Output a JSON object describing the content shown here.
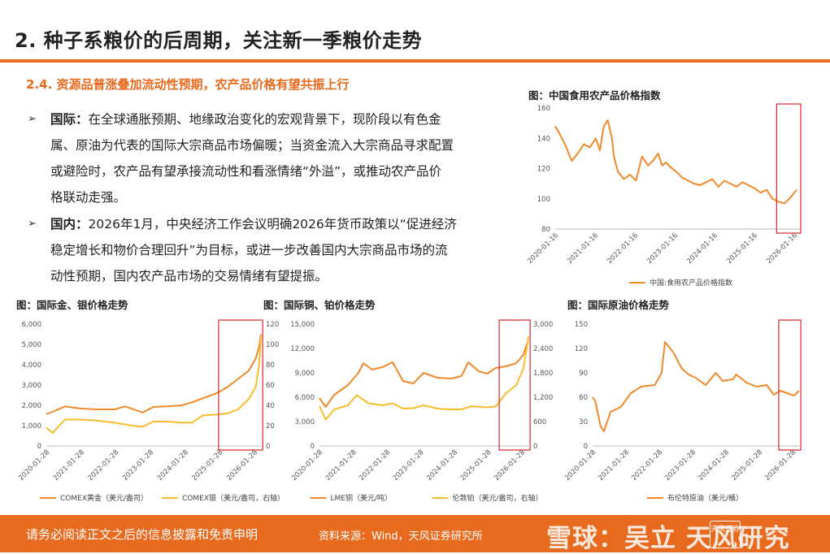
{
  "header": {
    "title": "2. 种子系粮价的后周期，关注新一季粮价走势",
    "subtitle": "2.4. 资源品普涨叠加流动性预期，农产品价格有望共振上行"
  },
  "paragraphs": [
    {
      "bullet": "➢",
      "lead": "国际：",
      "lines": [
        "在全球通胀预期、地缘政治变化的宏观背景下，现阶段以有色金",
        "属、原油为代表的国际大宗商品市场偏暖；当资金流入大宗商品寻求配置",
        "或避险时，农产品有望承接流动性和看涨情绪“外溢”，或推动农产品价",
        "格联动走强。"
      ]
    },
    {
      "bullet": "➢",
      "lead": "国内：",
      "lines": [
        "2026年1月，中央经济工作会议明确2026年货币政策以“促进经济",
        "稳定增长和物价合理回升”为目标，或进一步改善国内大宗商品市场的流",
        "动性预期，国内农产品市场的交易情绪有望提振。"
      ]
    }
  ],
  "footer": {
    "disclaimer": "请务必阅读正文之后的信息披露和免责申明",
    "source": "资料来源：Wind，天风证券研究所",
    "watermark": "雪球：吴立 天风研究",
    "logo_text": "天风证券"
  },
  "colors": {
    "accent": "#e86a1e",
    "series_orange": "#f08a2c",
    "series_yellow": "#f7bd2d",
    "highlight_box": "#d9262c"
  },
  "chart_data": [
    {
      "id": "cn_agri",
      "type": "line",
      "title": "图：中国食用农产品价格指数",
      "x_ticks": [
        "2020-01-16",
        "2021-01-16",
        "2022-01-16",
        "2023-01-16",
        "2024-01-16",
        "2025-01-16",
        "2026-01-16"
      ],
      "ylim": [
        80,
        160
      ],
      "y_ticks": [
        "80",
        "100",
        "120",
        "140",
        "160"
      ],
      "series": [
        {
          "name": "中国:食用农产品价格指数",
          "axis": "left",
          "x": [
            2020.04,
            2020.15,
            2020.3,
            2020.45,
            2020.6,
            2020.75,
            2020.9,
            2021.05,
            2021.15,
            2021.25,
            2021.35,
            2021.45,
            2021.5,
            2021.6,
            2021.75,
            2021.9,
            2022.05,
            2022.2,
            2022.35,
            2022.5,
            2022.6,
            2022.7,
            2022.8,
            2022.9,
            2023.05,
            2023.2,
            2023.35,
            2023.5,
            2023.65,
            2023.8,
            2023.95,
            2024.1,
            2024.25,
            2024.4,
            2024.55,
            2024.7,
            2024.85,
            2025.0,
            2025.15,
            2025.3,
            2025.45,
            2025.6,
            2025.75,
            2025.9,
            2026.05
          ],
          "values": [
            148,
            143,
            135,
            125,
            130,
            136,
            134,
            140,
            132,
            148,
            152,
            140,
            128,
            118,
            113,
            116,
            112,
            128,
            122,
            126,
            130,
            122,
            124,
            121,
            118,
            114,
            112,
            110,
            109,
            111,
            113,
            108,
            112,
            110,
            108,
            111,
            109,
            107,
            104,
            106,
            100,
            98,
            97,
            101,
            106
          ]
        }
      ],
      "highlight": {
        "x_from": 2025.55,
        "x_to": 2026.15
      }
    },
    {
      "id": "gold_silver",
      "type": "line",
      "title": "图：国际金、银价格走势",
      "x_ticks": [
        "2020-01-28",
        "2021-01-28",
        "2022-01-28",
        "2023-01-28",
        "2024-01-28",
        "2025-01-28",
        "2026-01-28"
      ],
      "ylim": [
        0,
        6000
      ],
      "y_ticks": [
        "0",
        "1,000",
        "2,000",
        "3,000",
        "4,000",
        "5,000",
        "6,000"
      ],
      "y2lim": [
        0,
        120
      ],
      "y2_ticks": [
        "0",
        "20",
        "40",
        "60",
        "80",
        "100",
        "120"
      ],
      "series": [
        {
          "name": "COMEX黄金（美元/盎司）",
          "axis": "left",
          "x": [
            2020.07,
            2020.3,
            2020.6,
            2021.0,
            2021.5,
            2022.0,
            2022.3,
            2022.8,
            2023.1,
            2023.5,
            2023.9,
            2024.2,
            2024.5,
            2024.9,
            2025.2,
            2025.5,
            2025.8,
            2026.0,
            2026.1,
            2026.15
          ],
          "values": [
            1570,
            1720,
            1950,
            1850,
            1800,
            1800,
            1950,
            1650,
            1920,
            1950,
            2000,
            2150,
            2350,
            2600,
            2900,
            3300,
            3700,
            4300,
            4900,
            5500
          ]
        },
        {
          "name": "COMEX银（美元/盎司，右轴）",
          "axis": "right",
          "x": [
            2020.07,
            2020.25,
            2020.6,
            2021.0,
            2021.5,
            2022.0,
            2022.5,
            2022.8,
            2023.1,
            2023.5,
            2023.9,
            2024.2,
            2024.5,
            2024.9,
            2025.2,
            2025.5,
            2025.8,
            2026.0,
            2026.1,
            2026.15
          ],
          "values": [
            18,
            13,
            26,
            26,
            25,
            23,
            20,
            19,
            24,
            24,
            23,
            23,
            30,
            31,
            32,
            36,
            46,
            58,
            80,
            108
          ]
        }
      ],
      "highlight": {
        "x_from": 2024.95,
        "x_to": 2026.2
      }
    },
    {
      "id": "copper_platinum",
      "type": "line",
      "title": "图：国际铜、铂价格走势",
      "x_ticks": [
        "2020-01-28",
        "2021-01-28",
        "2022-01-28",
        "2023-01-28",
        "2024-01-28",
        "2025-01-28",
        "2026-01-28"
      ],
      "ylim": [
        0,
        15000
      ],
      "y_ticks": [
        "0",
        "3,000",
        "6,000",
        "9,000",
        "12,000",
        "15,000"
      ],
      "y2lim": [
        0,
        3000
      ],
      "y2_ticks": [
        "0",
        "600",
        "1,200",
        "1,800",
        "2,400",
        "3,000"
      ],
      "series": [
        {
          "name": "LME铜（美元/吨）",
          "axis": "left",
          "x": [
            2020.07,
            2020.25,
            2020.5,
            2020.9,
            2021.2,
            2021.35,
            2021.6,
            2021.9,
            2022.2,
            2022.5,
            2022.8,
            2023.1,
            2023.5,
            2023.9,
            2024.2,
            2024.4,
            2024.7,
            2024.95,
            2025.2,
            2025.5,
            2025.8,
            2026.0,
            2026.1,
            2026.15
          ],
          "values": [
            5900,
            4800,
            6300,
            7500,
            9000,
            10200,
            9400,
            9700,
            10300,
            8000,
            7700,
            9000,
            8400,
            8300,
            8600,
            10300,
            9200,
            8900,
            9600,
            9800,
            10200,
            11200,
            12500,
            13000
          ]
        },
        {
          "name": "伦敦铂（美元/盎司，右轴）",
          "axis": "right",
          "x": [
            2020.07,
            2020.25,
            2020.5,
            2020.9,
            2021.15,
            2021.5,
            2021.9,
            2022.2,
            2022.5,
            2022.8,
            2023.1,
            2023.5,
            2023.9,
            2024.2,
            2024.5,
            2024.9,
            2025.2,
            2025.5,
            2025.8,
            2026.0,
            2026.1,
            2026.15
          ],
          "values": [
            980,
            650,
            900,
            1000,
            1250,
            1050,
            1000,
            1050,
            920,
            930,
            1000,
            920,
            900,
            900,
            980,
            950,
            970,
            1300,
            1500,
            1900,
            2400,
            2700
          ]
        }
      ],
      "highlight": {
        "x_from": 2025.3,
        "x_to": 2026.2
      }
    },
    {
      "id": "brent",
      "type": "line",
      "title": "图：国际原油价格走势",
      "x_ticks": [
        "2020-01-28",
        "2021-01-28",
        "2022-01-28",
        "2023-01-28",
        "2024-01-28",
        "2025-01-28",
        "2026-01-28"
      ],
      "ylim": [
        0,
        150
      ],
      "y_ticks": [
        "0",
        "30",
        "60",
        "90",
        "120",
        "150"
      ],
      "series": [
        {
          "name": "布伦特原油（美元/桶）",
          "axis": "left",
          "x": [
            2020.07,
            2020.15,
            2020.3,
            2020.4,
            2020.6,
            2020.9,
            2021.2,
            2021.5,
            2021.9,
            2022.1,
            2022.2,
            2022.45,
            2022.7,
            2022.9,
            2023.1,
            2023.4,
            2023.7,
            2023.9,
            2024.2,
            2024.3,
            2024.6,
            2024.9,
            2025.2,
            2025.4,
            2025.6,
            2025.8,
            2026.0,
            2026.15
          ],
          "values": [
            60,
            55,
            25,
            18,
            42,
            48,
            65,
            73,
            75,
            90,
            128,
            115,
            95,
            88,
            84,
            75,
            90,
            80,
            82,
            88,
            78,
            73,
            75,
            63,
            68,
            65,
            62,
            68
          ]
        }
      ],
      "highlight": {
        "x_from": 2025.55,
        "x_to": 2026.2
      }
    }
  ]
}
